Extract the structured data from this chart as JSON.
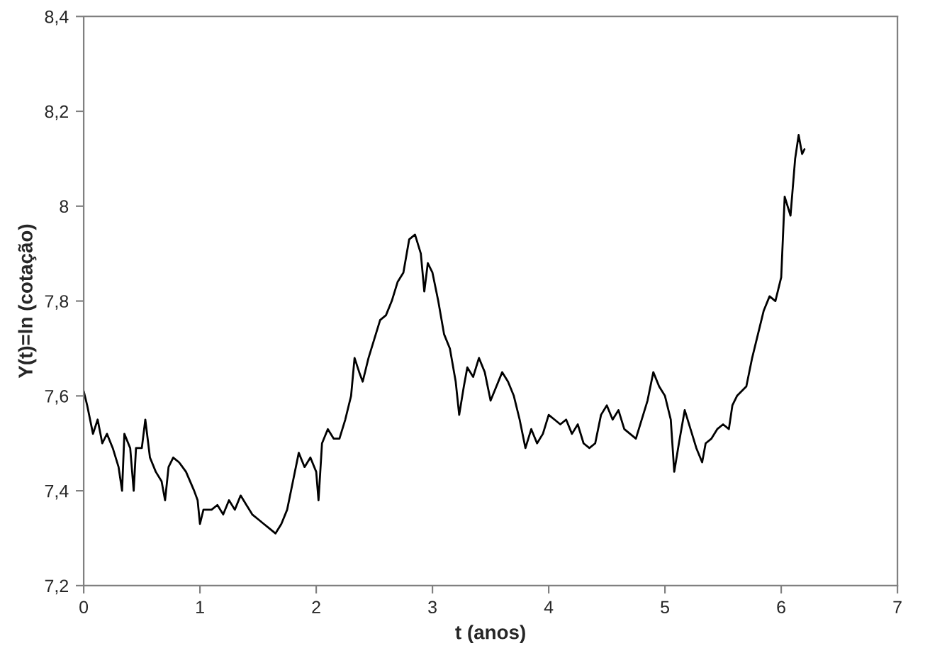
{
  "chart_data": {
    "type": "line",
    "xlabel": "t (anos)",
    "ylabel": "Y(t)=ln (cotação)",
    "xlim": [
      0,
      7
    ],
    "xticks": [
      0,
      1,
      2,
      3,
      4,
      5,
      6,
      7
    ],
    "ylim": [
      7.2,
      8.4
    ],
    "yticks": [
      {
        "value": 7.2,
        "label": "7,2"
      },
      {
        "value": 7.4,
        "label": "7,4"
      },
      {
        "value": 7.6,
        "label": "7,6"
      },
      {
        "value": 7.8,
        "label": "7,8"
      },
      {
        "value": 8,
        "label": "8"
      },
      {
        "value": 8.2,
        "label": "8,2"
      },
      {
        "value": 8.4,
        "label": "8,4"
      }
    ],
    "grid": false,
    "legend": false,
    "marker": "none",
    "line_style": "solid",
    "x": [
      0,
      0.03,
      0.08,
      0.12,
      0.16,
      0.2,
      0.25,
      0.3,
      0.33,
      0.35,
      0.4,
      0.43,
      0.45,
      0.5,
      0.53,
      0.57,
      0.62,
      0.67,
      0.7,
      0.73,
      0.77,
      0.82,
      0.88,
      0.95,
      0.98,
      1.0,
      1.03,
      1.1,
      1.15,
      1.2,
      1.25,
      1.3,
      1.35,
      1.4,
      1.45,
      1.5,
      1.55,
      1.6,
      1.65,
      1.7,
      1.75,
      1.8,
      1.85,
      1.9,
      1.95,
      2.0,
      2.02,
      2.05,
      2.1,
      2.15,
      2.2,
      2.25,
      2.3,
      2.33,
      2.37,
      2.4,
      2.45,
      2.5,
      2.55,
      2.6,
      2.65,
      2.7,
      2.75,
      2.8,
      2.85,
      2.9,
      2.93,
      2.96,
      3.0,
      3.05,
      3.1,
      3.15,
      3.2,
      3.23,
      3.27,
      3.3,
      3.35,
      3.4,
      3.45,
      3.5,
      3.55,
      3.6,
      3.65,
      3.7,
      3.75,
      3.8,
      3.85,
      3.9,
      3.95,
      4.0,
      4.05,
      4.1,
      4.15,
      4.2,
      4.25,
      4.3,
      4.35,
      4.4,
      4.45,
      4.5,
      4.55,
      4.6,
      4.65,
      4.7,
      4.75,
      4.8,
      4.85,
      4.9,
      4.95,
      5.0,
      5.05,
      5.08,
      5.12,
      5.17,
      5.22,
      5.27,
      5.32,
      5.35,
      5.4,
      5.45,
      5.5,
      5.55,
      5.58,
      5.62,
      5.7,
      5.75,
      5.8,
      5.85,
      5.9,
      5.95,
      6.0,
      6.03,
      6.08,
      6.12,
      6.15,
      6.18,
      6.2
    ],
    "series": [
      {
        "color": "#000000",
        "values": [
          7.61,
          7.58,
          7.52,
          7.55,
          7.5,
          7.52,
          7.49,
          7.45,
          7.4,
          7.52,
          7.49,
          7.4,
          7.49,
          7.49,
          7.55,
          7.47,
          7.44,
          7.42,
          7.38,
          7.45,
          7.47,
          7.46,
          7.44,
          7.4,
          7.38,
          7.33,
          7.36,
          7.36,
          7.37,
          7.35,
          7.38,
          7.36,
          7.39,
          7.37,
          7.35,
          7.34,
          7.33,
          7.32,
          7.31,
          7.33,
          7.36,
          7.42,
          7.48,
          7.45,
          7.47,
          7.44,
          7.38,
          7.5,
          7.53,
          7.51,
          7.51,
          7.55,
          7.6,
          7.68,
          7.65,
          7.63,
          7.68,
          7.72,
          7.76,
          7.77,
          7.8,
          7.84,
          7.86,
          7.93,
          7.94,
          7.9,
          7.82,
          7.88,
          7.86,
          7.8,
          7.73,
          7.7,
          7.63,
          7.56,
          7.62,
          7.66,
          7.64,
          7.68,
          7.65,
          7.59,
          7.62,
          7.65,
          7.63,
          7.6,
          7.55,
          7.49,
          7.53,
          7.5,
          7.52,
          7.56,
          7.55,
          7.54,
          7.55,
          7.52,
          7.54,
          7.5,
          7.49,
          7.5,
          7.56,
          7.58,
          7.55,
          7.57,
          7.53,
          7.52,
          7.51,
          7.55,
          7.59,
          7.65,
          7.62,
          7.6,
          7.55,
          7.44,
          7.5,
          7.57,
          7.53,
          7.49,
          7.46,
          7.5,
          7.51,
          7.53,
          7.54,
          7.53,
          7.58,
          7.6,
          7.62,
          7.68,
          7.73,
          7.78,
          7.81,
          7.8,
          7.85,
          8.02,
          7.98,
          8.1,
          8.15,
          8.11,
          8.12
        ]
      }
    ]
  }
}
